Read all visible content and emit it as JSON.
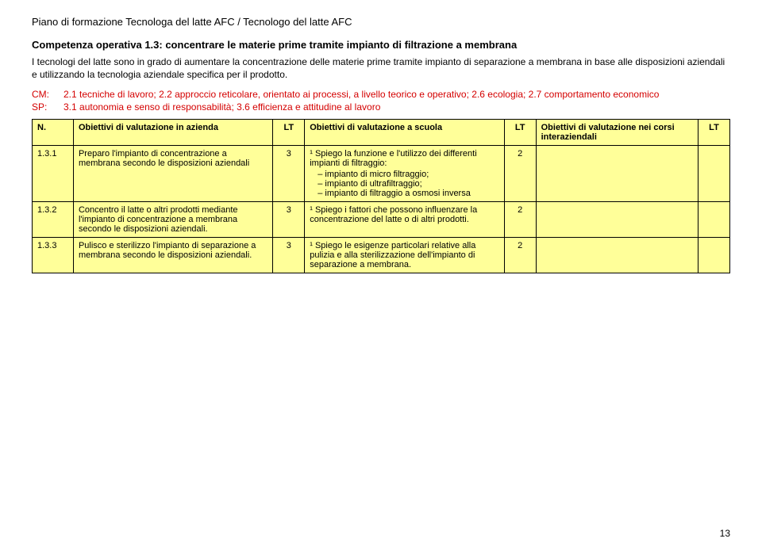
{
  "header": "Piano di formazione Tecnologa del latte AFC / Tecnologo del latte AFC",
  "subheader": "Competenza operativa 1.3: concentrare le materie prime tramite impianto di filtrazione a membrana",
  "description": "I tecnologi del latte sono in grado di aumentare la concentrazione delle materie prime tramite impianto di separazione a membrana in base alle disposizioni aziendali e utilizzando la tecnologia aziendale specifica per il prodotto.",
  "cm": {
    "label": "CM:",
    "text": "2.1 tecniche di lavoro; 2.2 approccio reticolare, orientato ai processi, a livello teorico e operativo; 2.6 ecologia; 2.7 comportamento economico"
  },
  "sp": {
    "label": "SP:",
    "text": "3.1 autonomia e senso di responsabilità; 3.6 efficienza e attitudine al lavoro"
  },
  "columns": {
    "n": "N.",
    "az": "Obiettivi di valutazione in azienda",
    "lt1": "LT",
    "sc": "Obiettivi di valutazione a scuola",
    "lt2": "LT",
    "corsi": "Obiettivi di valutazione nei corsi interaziendali",
    "lt3": "LT"
  },
  "rows": [
    {
      "n": "1.3.1",
      "az": "Preparo l'impianto di concentrazione a membrana secondo le disposizioni aziendali",
      "lt1": "3",
      "sc_lead": "¹ Spiego la funzione e l'utilizzo dei differenti impianti di filtraggio:",
      "sc_items": [
        "impianto di micro filtraggio;",
        "impianto di ultrafiltraggio;",
        "impianto di filtraggio a osmosi inversa"
      ],
      "lt2": "2",
      "corsi": "",
      "lt3": ""
    },
    {
      "n": "1.3.2",
      "az": "Concentro il latte o altri prodotti mediante l'impianto di concentrazione a membrana secondo le disposizioni aziendali.",
      "lt1": "3",
      "sc": "¹ Spiego i fattori che possono influenzare la concentrazione del latte o di altri prodotti.",
      "lt2": "2",
      "corsi": "",
      "lt3": ""
    },
    {
      "n": "1.3.3",
      "az": "Pulisco e sterilizzo l'impianto di separazione a membrana secondo le disposizioni aziendali.",
      "lt1": "3",
      "sc": "¹ Spiego le esigenze particolari relative alla pulizia e alla sterilizzazione dell'impianto di separazione a membrana.",
      "lt2": "2",
      "corsi": "",
      "lt3": ""
    }
  ],
  "pagenum": "13"
}
